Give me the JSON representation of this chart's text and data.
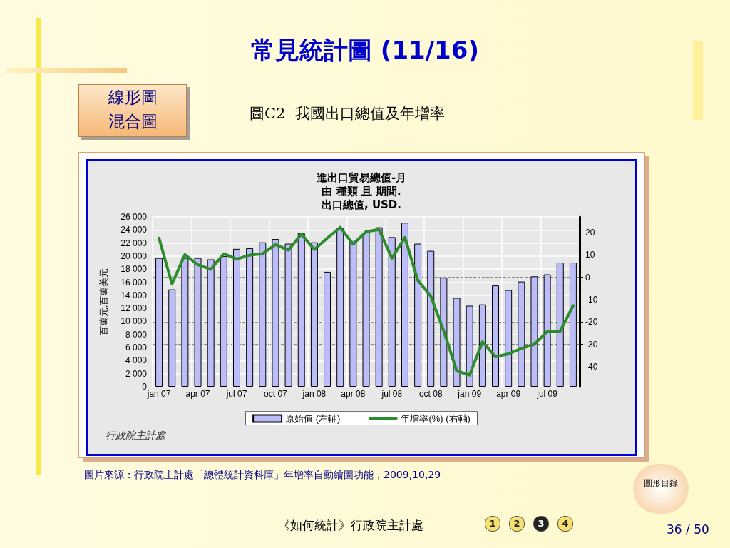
{
  "chart_data": {
    "type": "bar",
    "title": "常見統計圖 (11/16)",
    "subtitle": "圖C2  我國出口總值及年增率",
    "ylabel": "百萬元,百萬美元",
    "annotations": [
      "線形圖",
      "混合圖",
      "進出口貿易總值-月",
      "由 種類 且 期間.",
      "出口總值, USD.",
      "行政院主計處",
      "圖片來源：行政院主計處「總體統計資料庫」年增率自動繪圖功能，2009,10,29",
      "《如何統計》行政院主計處",
      "36 / 50",
      "圖形目錄",
      "1",
      "2",
      "3",
      "4"
    ],
    "categories": [
      "jan 07",
      null,
      null,
      "apr 07",
      null,
      null,
      "jul 07",
      null,
      null,
      "oct 07",
      null,
      null,
      "jan 08",
      null,
      null,
      "apr 08",
      null,
      null,
      "jul 08",
      null,
      null,
      "oct 08",
      null,
      null,
      "jan 09",
      null,
      null,
      "apr 09",
      null,
      null,
      "jul 09",
      null,
      null
    ],
    "series": [
      {
        "name": "原始值 (左軸)",
        "color": "#bcbcf8",
        "values": [
          19700,
          14900,
          19700,
          19700,
          19500,
          20000,
          21100,
          21200,
          22100,
          22600,
          21900,
          23500,
          22100,
          17600,
          24300,
          22500,
          23600,
          24400,
          22900,
          25100,
          21900,
          20800,
          16700,
          13600,
          12400,
          12600,
          15500,
          14800,
          16100,
          16900,
          17200,
          19000,
          19000
        ]
      },
      {
        "name": "年增率(%) (右軸)",
        "type": "line",
        "axis": "y2",
        "color": "#2e8b2e",
        "values": [
          17.5,
          -3.0,
          10.1,
          5.6,
          3.5,
          10.5,
          8.1,
          9.9,
          10.5,
          14.6,
          12.1,
          19.3,
          12.4,
          17.5,
          22.3,
          14.8,
          20.4,
          21.3,
          8.5,
          17.8,
          -1.4,
          -8.4,
          -24.0,
          -41.9,
          -43.8,
          -28.9,
          -35.6,
          -34.3,
          -31.9,
          -30.0,
          -24.3,
          -24.1,
          -12.7
        ]
      }
    ],
    "ylim": [
      0,
      26000
    ],
    "yticks": [
      0,
      {
        "value": 2000,
        "label": "2 000"
      },
      {
        "value": 4000,
        "label": "4 000"
      },
      {
        "value": 6000,
        "label": "6 000"
      },
      {
        "value": 8000,
        "label": "8 000"
      },
      {
        "value": 10000,
        "label": "10 000"
      },
      {
        "value": 12000,
        "label": "12 000"
      },
      {
        "value": 14000,
        "label": "14 000"
      },
      {
        "value": 16000,
        "label": "16 000"
      },
      {
        "value": 18000,
        "label": "18 000"
      },
      {
        "value": 20000,
        "label": "20 000"
      },
      {
        "value": 22000,
        "label": "22 000"
      },
      {
        "value": 24000,
        "label": "24 000"
      },
      {
        "value": 26000,
        "label": "26 000"
      }
    ],
    "y2lim": [
      -49,
      27
    ],
    "y2ticks": [
      -40,
      -30,
      -20,
      -10,
      0,
      10,
      20
    ],
    "grid": true,
    "legend": "bottom",
    "marker": "none",
    "line_style": "solid"
  }
}
